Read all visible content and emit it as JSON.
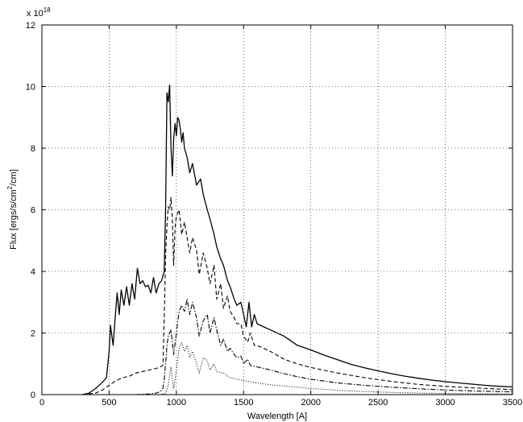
{
  "chart_data": {
    "type": "line",
    "title": "",
    "xlabel": "Wavelength [A]",
    "ylabel_parts": {
      "main": "Flux [ergs/s/cm",
      "sup": "2",
      "tail": "/cm]"
    },
    "y_exponent": {
      "base": "x 10",
      "exp": "18"
    },
    "xlim": [
      0,
      3500
    ],
    "ylim": [
      0,
      12
    ],
    "xticks": [
      "0",
      "500",
      "1000",
      "1500",
      "2000",
      "2500",
      "3000",
      "3500"
    ],
    "yticks": [
      "0",
      "2",
      "4",
      "6",
      "8",
      "10",
      "12"
    ],
    "grid": true,
    "series": [
      {
        "style": "solid",
        "x": [
          300,
          350,
          400,
          450,
          480,
          500,
          510,
          520,
          530,
          545,
          560,
          575,
          590,
          610,
          630,
          650,
          670,
          690,
          710,
          730,
          750,
          770,
          790,
          810,
          830,
          850,
          870,
          890,
          910,
          920,
          930,
          940,
          950,
          960,
          970,
          980,
          990,
          1000,
          1010,
          1020,
          1030,
          1040,
          1050,
          1060,
          1080,
          1100,
          1120,
          1150,
          1180,
          1200,
          1230,
          1250,
          1280,
          1300,
          1330,
          1350,
          1380,
          1400,
          1430,
          1450,
          1480,
          1500,
          1520,
          1540,
          1560,
          1580,
          1600,
          1650,
          1700,
          1800,
          1900,
          2000,
          2100,
          2200,
          2300,
          2400,
          2500,
          2600,
          2700,
          2800,
          2900,
          3000,
          3100,
          3200,
          3300,
          3400,
          3500
        ],
        "y": [
          0.0,
          0.05,
          0.2,
          0.4,
          0.55,
          1.4,
          2.25,
          1.9,
          1.6,
          2.5,
          3.3,
          2.6,
          3.4,
          2.9,
          3.5,
          2.9,
          3.6,
          3.1,
          4.1,
          3.6,
          3.7,
          3.5,
          3.55,
          3.3,
          3.8,
          3.3,
          3.6,
          3.7,
          4.0,
          6.0,
          9.8,
          9.5,
          10.05,
          8.0,
          7.1,
          8.3,
          8.8,
          8.4,
          9.0,
          8.9,
          8.6,
          8.2,
          8.5,
          8.0,
          7.7,
          7.2,
          7.5,
          6.8,
          7.0,
          6.5,
          6.0,
          5.7,
          5.2,
          4.8,
          4.4,
          4.2,
          3.7,
          3.5,
          3.1,
          2.9,
          3.0,
          2.6,
          2.2,
          3.0,
          2.2,
          2.6,
          2.3,
          2.2,
          2.1,
          1.9,
          1.6,
          1.45,
          1.28,
          1.13,
          0.98,
          0.87,
          0.77,
          0.68,
          0.6,
          0.53,
          0.47,
          0.42,
          0.38,
          0.34,
          0.3,
          0.27,
          0.25
        ]
      },
      {
        "style": "dashed",
        "x": [
          300,
          400,
          450,
          500,
          550,
          600,
          650,
          700,
          750,
          800,
          850,
          880,
          900,
          910,
          920,
          930,
          940,
          950,
          960,
          970,
          980,
          990,
          1000,
          1020,
          1040,
          1060,
          1080,
          1100,
          1120,
          1150,
          1170,
          1200,
          1230,
          1250,
          1280,
          1300,
          1330,
          1350,
          1380,
          1400,
          1430,
          1450,
          1480,
          1500,
          1530,
          1550,
          1580,
          1600,
          1700,
          1800,
          1900,
          2000,
          2200,
          2400,
          2600,
          2800,
          3000,
          3200,
          3400,
          3500
        ],
        "y": [
          0.0,
          0.05,
          0.15,
          0.3,
          0.45,
          0.55,
          0.6,
          0.7,
          0.75,
          0.8,
          0.85,
          0.9,
          0.95,
          2.5,
          4.5,
          5.5,
          6.1,
          6.0,
          6.4,
          5.7,
          4.2,
          5.4,
          5.8,
          6.0,
          5.2,
          5.6,
          5.1,
          4.6,
          5.1,
          4.7,
          3.9,
          4.6,
          4.1,
          3.6,
          4.2,
          3.1,
          3.6,
          2.8,
          3.2,
          2.7,
          2.5,
          2.3,
          2.3,
          1.9,
          1.7,
          2.0,
          1.6,
          1.6,
          1.4,
          1.15,
          1.0,
          0.88,
          0.7,
          0.55,
          0.43,
          0.33,
          0.27,
          0.22,
          0.18,
          0.16
        ]
      },
      {
        "style": "dashdot",
        "x": [
          700,
          800,
          850,
          880,
          900,
          910,
          920,
          930,
          940,
          950,
          960,
          970,
          980,
          1000,
          1020,
          1040,
          1060,
          1080,
          1100,
          1120,
          1150,
          1170,
          1200,
          1230,
          1250,
          1280,
          1300,
          1330,
          1350,
          1380,
          1400,
          1430,
          1450,
          1480,
          1500,
          1530,
          1550,
          1600,
          1700,
          1800,
          1900,
          2000,
          2200,
          2400,
          2600,
          2800,
          3000,
          3200,
          3400,
          3500
        ],
        "y": [
          0.0,
          0.02,
          0.05,
          0.1,
          0.2,
          0.5,
          1.0,
          1.6,
          1.9,
          2.0,
          2.1,
          1.7,
          1.3,
          2.0,
          2.7,
          2.9,
          2.7,
          3.1,
          2.6,
          3.0,
          2.5,
          1.9,
          2.4,
          2.6,
          2.0,
          2.5,
          2.1,
          1.6,
          1.8,
          1.4,
          1.5,
          1.3,
          1.2,
          1.25,
          1.0,
          1.15,
          0.95,
          0.9,
          0.8,
          0.68,
          0.58,
          0.5,
          0.38,
          0.3,
          0.24,
          0.19,
          0.15,
          0.12,
          0.1,
          0.09
        ]
      },
      {
        "style": "dotted",
        "x": [
          880,
          920,
          940,
          950,
          960,
          970,
          980,
          1000,
          1020,
          1040,
          1060,
          1080,
          1100,
          1120,
          1150,
          1170,
          1200,
          1230,
          1250,
          1280,
          1300,
          1350,
          1400,
          1450,
          1500,
          1600,
          1700,
          1800,
          1900,
          2000,
          2200,
          2400,
          2600,
          2800,
          3000,
          3200,
          3500
        ],
        "y": [
          0.0,
          0.05,
          0.3,
          0.6,
          0.9,
          0.5,
          0.2,
          0.8,
          1.5,
          1.7,
          1.4,
          1.6,
          1.2,
          1.4,
          1.0,
          0.7,
          1.2,
          1.1,
          0.8,
          1.0,
          0.75,
          0.7,
          0.55,
          0.5,
          0.45,
          0.38,
          0.32,
          0.28,
          0.24,
          0.2,
          0.14,
          0.1,
          0.07,
          0.05,
          0.04,
          0.03,
          0.02
        ]
      }
    ]
  }
}
